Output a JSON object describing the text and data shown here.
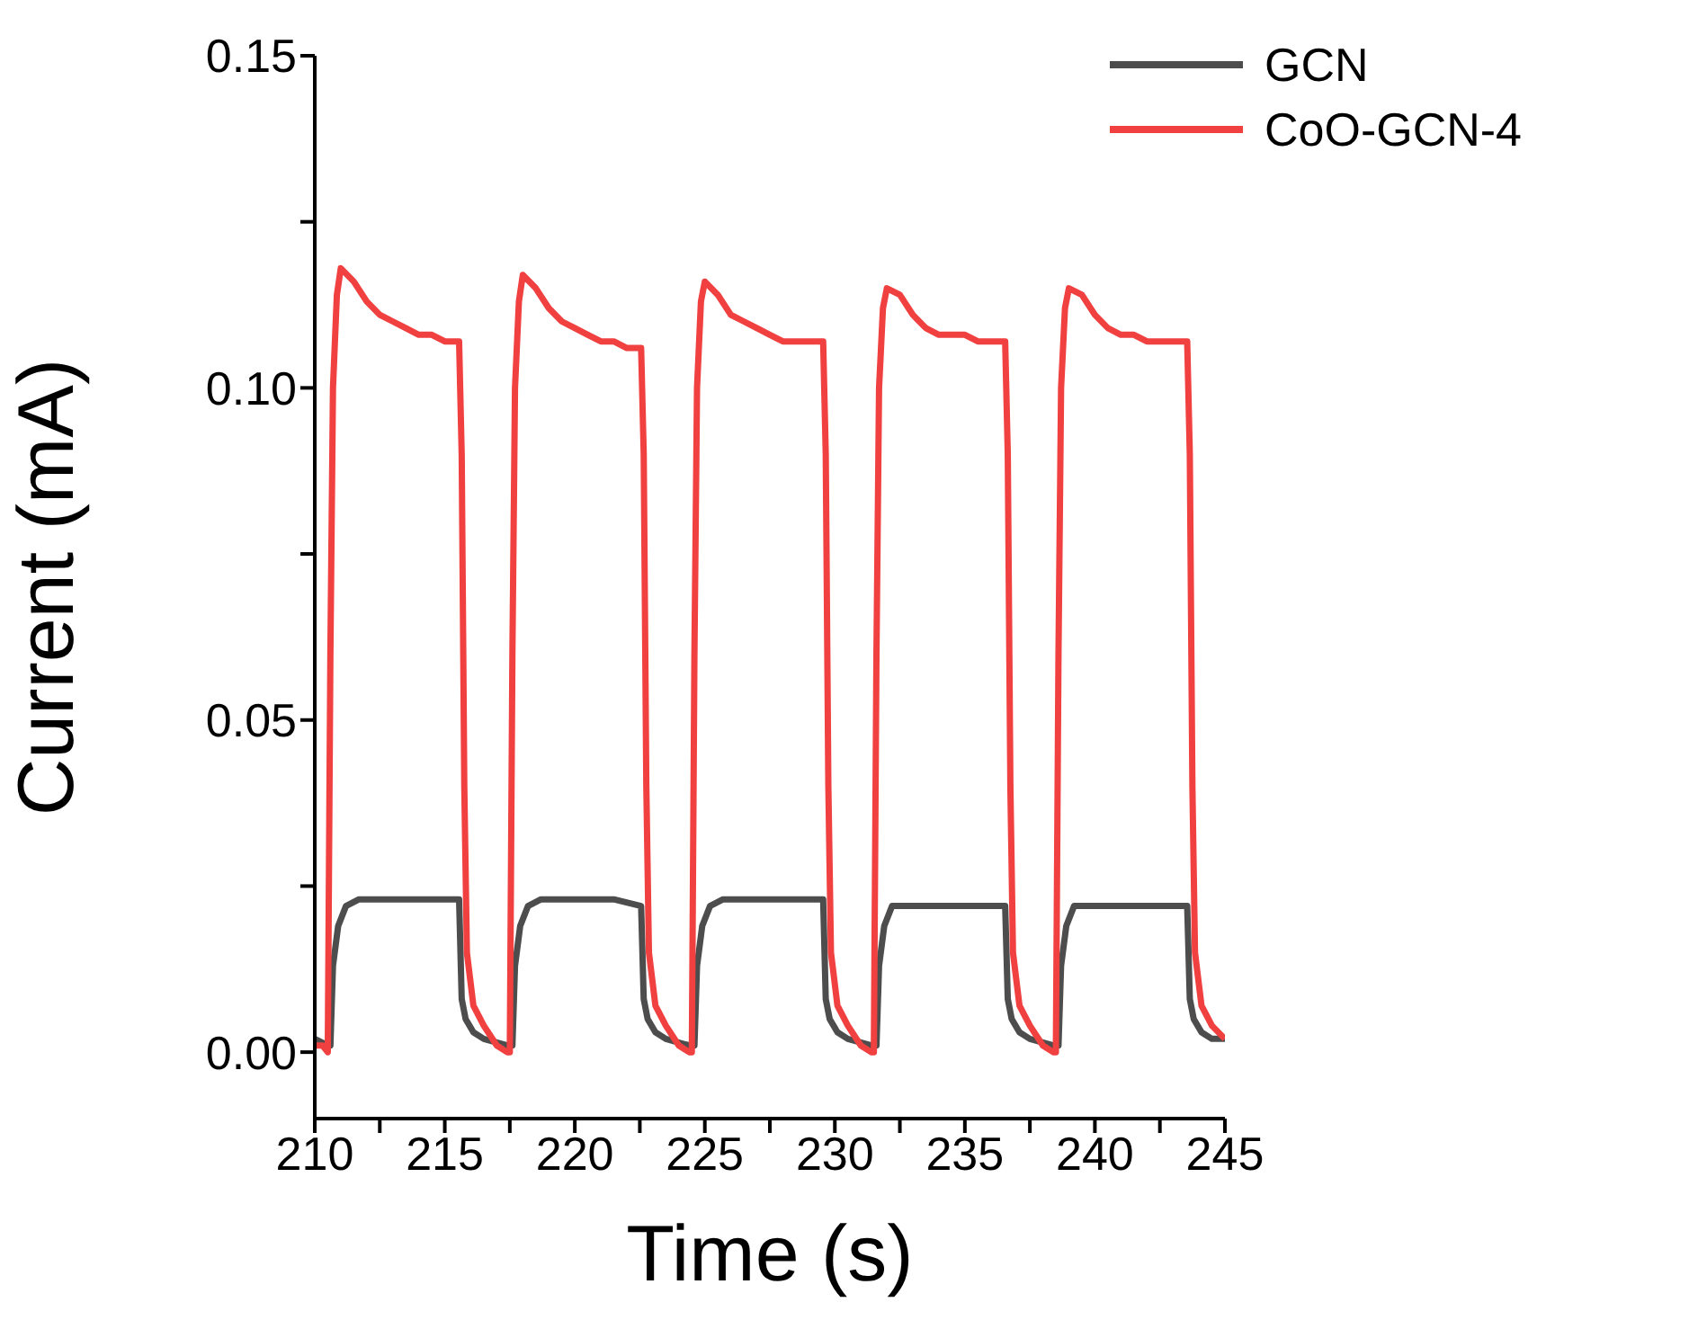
{
  "chart_data": {
    "type": "line",
    "xlabel": "Time (s)",
    "ylabel": "Current (mA)",
    "xlim": [
      210,
      245
    ],
    "xticks": [
      210,
      {
        "value": 212.5,
        "label": null
      },
      215,
      {
        "value": 217.5,
        "label": null
      },
      220,
      {
        "value": 222.5,
        "label": null
      },
      225,
      {
        "value": 227.5,
        "label": null
      },
      230,
      {
        "value": 232.5,
        "label": null
      },
      235,
      {
        "value": 237.5,
        "label": null
      },
      240,
      {
        "value": 242.5,
        "label": null
      },
      245
    ],
    "ylim": [
      -0.01,
      0.15
    ],
    "yticks": [
      {
        "value": 0,
        "label": "0.00"
      },
      {
        "value": 0.025,
        "label": null
      },
      {
        "value": 0.05,
        "label": "0.05"
      },
      {
        "value": 0.075,
        "label": null
      },
      {
        "value": 0.1,
        "label": "0.10"
      },
      {
        "value": 0.125,
        "label": null
      },
      {
        "value": 0.15,
        "label": "0.15"
      }
    ],
    "grid": false,
    "legend": "top right",
    "marker": "none",
    "line_style": "solid",
    "series": [
      {
        "name": "GCN",
        "color": "#4d4d4d",
        "x": [
          210,
          210.5,
          210.6,
          210.7,
          210.9,
          211.2,
          211.7,
          213,
          214.5,
          215.55,
          215.65,
          215.8,
          216.1,
          216.5,
          217.4,
          217.6,
          217.7,
          217.9,
          218.2,
          218.7,
          220,
          221.5,
          222.55,
          222.65,
          222.8,
          223.1,
          223.5,
          224.4,
          224.6,
          224.7,
          224.9,
          225.2,
          225.7,
          227,
          228.5,
          229.55,
          229.65,
          229.8,
          230.1,
          230.5,
          231.4,
          231.6,
          231.7,
          231.9,
          232.2,
          232.7,
          234,
          235.5,
          236.55,
          236.65,
          236.8,
          237.1,
          237.5,
          238.4,
          238.6,
          238.7,
          238.9,
          239.2,
          239.7,
          241,
          242.5,
          243.55,
          243.65,
          243.8,
          244.1,
          244.5,
          245
        ],
        "values": [
          0.002,
          0.001,
          0.001,
          0.013,
          0.019,
          0.022,
          0.023,
          0.023,
          0.023,
          0.023,
          0.008,
          0.005,
          0.003,
          0.002,
          0.001,
          0.001,
          0.013,
          0.019,
          0.022,
          0.023,
          0.023,
          0.023,
          0.022,
          0.008,
          0.005,
          0.003,
          0.002,
          0.001,
          0.001,
          0.013,
          0.019,
          0.022,
          0.023,
          0.023,
          0.023,
          0.023,
          0.008,
          0.005,
          0.003,
          0.002,
          0.001,
          0.001,
          0.013,
          0.019,
          0.022,
          0.022,
          0.022,
          0.022,
          0.022,
          0.008,
          0.005,
          0.003,
          0.002,
          0.001,
          0.001,
          0.013,
          0.019,
          0.022,
          0.022,
          0.022,
          0.022,
          0.022,
          0.008,
          0.005,
          0.003,
          0.002,
          0.002
        ]
      },
      {
        "name": "CoO-GCN-4",
        "color": "#f04040",
        "x": [
          210,
          210.3,
          210.5,
          210.6,
          210.7,
          210.85,
          211,
          211.5,
          212,
          212.5,
          213,
          213.5,
          214,
          214.5,
          215,
          215.55,
          215.65,
          215.75,
          215.85,
          216.1,
          216.5,
          217,
          217.4,
          217.5,
          217.6,
          217.7,
          217.85,
          218,
          218.5,
          219,
          219.5,
          220,
          220.5,
          221,
          221.5,
          222,
          222.55,
          222.65,
          222.75,
          222.85,
          223.1,
          223.5,
          224,
          224.4,
          224.5,
          224.6,
          224.7,
          224.85,
          225,
          225.5,
          226,
          226.5,
          227,
          227.5,
          228,
          228.5,
          229,
          229.55,
          229.65,
          229.75,
          229.85,
          230.1,
          230.5,
          231,
          231.4,
          231.5,
          231.6,
          231.7,
          231.85,
          232,
          232.5,
          233,
          233.5,
          234,
          234.5,
          235,
          235.5,
          236,
          236.55,
          236.65,
          236.75,
          236.85,
          237.1,
          237.5,
          238,
          238.4,
          238.5,
          238.6,
          238.7,
          238.85,
          239,
          239.5,
          240,
          240.5,
          241,
          241.5,
          242,
          242.5,
          243,
          243.55,
          243.65,
          243.75,
          243.85,
          244.1,
          244.5,
          245
        ],
        "values": [
          0.001,
          0.001,
          0,
          0.06,
          0.1,
          0.114,
          0.118,
          0.116,
          0.113,
          0.111,
          0.11,
          0.109,
          0.108,
          0.108,
          0.107,
          0.107,
          0.09,
          0.04,
          0.015,
          0.007,
          0.004,
          0.001,
          0,
          0,
          0.06,
          0.1,
          0.113,
          0.117,
          0.115,
          0.112,
          0.11,
          0.109,
          0.108,
          0.107,
          0.107,
          0.106,
          0.106,
          0.09,
          0.04,
          0.015,
          0.007,
          0.004,
          0.001,
          0,
          0,
          0.06,
          0.1,
          0.113,
          0.116,
          0.114,
          0.111,
          0.11,
          0.109,
          0.108,
          0.107,
          0.107,
          0.107,
          0.107,
          0.09,
          0.04,
          0.015,
          0.007,
          0.004,
          0.001,
          0,
          0,
          0.06,
          0.1,
          0.112,
          0.115,
          0.114,
          0.111,
          0.109,
          0.108,
          0.108,
          0.108,
          0.107,
          0.107,
          0.107,
          0.09,
          0.04,
          0.015,
          0.007,
          0.004,
          0.001,
          0,
          0,
          0.06,
          0.1,
          0.112,
          0.115,
          0.114,
          0.111,
          0.109,
          0.108,
          0.108,
          0.107,
          0.107,
          0.107,
          0.107,
          0.09,
          0.04,
          0.015,
          0.007,
          0.004,
          0.002
        ]
      }
    ]
  }
}
